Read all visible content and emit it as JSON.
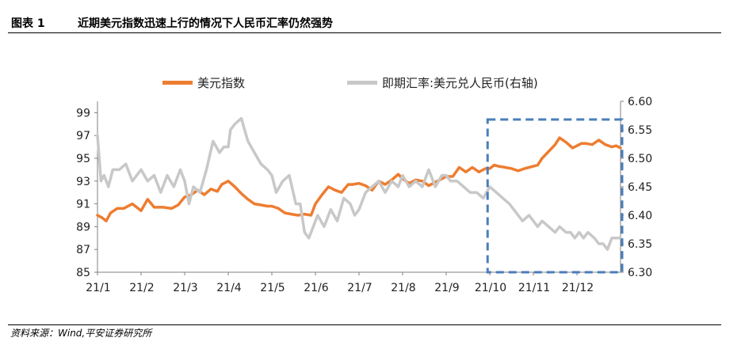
{
  "header": {
    "figure_label": "图表 1",
    "title": "近期美元指数迅速上行的情况下人民币汇率仍然强势"
  },
  "source": "资料来源：Wind,平安证券研究所",
  "colors": {
    "usd_index": "#ED7D31",
    "usdcny": "#C8C8C8",
    "highlight_box": "#4A7EBB",
    "axis": "#808080"
  },
  "chart_data": {
    "type": "line",
    "title": "近期美元指数迅速上行的情况下人民币汇率仍然强势",
    "xlabel": "",
    "ylabel_left": "",
    "ylabel_right": "",
    "x_ticks": [
      "21/1",
      "21/2",
      "21/3",
      "21/4",
      "21/5",
      "21/6",
      "21/7",
      "21/8",
      "21/9",
      "21/10",
      "21/11",
      "21/12"
    ],
    "x_range": [
      0,
      12
    ],
    "ylim_left": [
      85,
      100
    ],
    "yticks_left": [
      "85",
      "87",
      "89",
      "91",
      "93",
      "95",
      "97",
      "99"
    ],
    "ylim_right": [
      6.3,
      6.6
    ],
    "yticks_right": [
      "6.30",
      "6.35",
      "6.40",
      "6.45",
      "6.50",
      "6.55",
      "6.60"
    ],
    "legend": [
      "美元指数",
      "即期汇率:美元兑人民币(右轴)"
    ],
    "legend_position": "top-center",
    "highlight_region": {
      "x_start": 8.95,
      "x_end": 12.0,
      "style": "dashed-box",
      "label": ""
    },
    "series": [
      {
        "name": "美元指数",
        "axis": "left",
        "x": [
          0,
          0.1,
          0.2,
          0.3,
          0.45,
          0.6,
          0.8,
          1,
          1.15,
          1.3,
          1.5,
          1.7,
          1.85,
          2,
          2.15,
          2.3,
          2.45,
          2.6,
          2.75,
          2.85,
          3,
          3.15,
          3.3,
          3.45,
          3.6,
          3.75,
          3.9,
          4,
          4.15,
          4.3,
          4.45,
          4.6,
          4.75,
          4.9,
          5,
          5.15,
          5.3,
          5.45,
          5.6,
          5.75,
          5.85,
          6,
          6.15,
          6.3,
          6.45,
          6.6,
          6.75,
          6.9,
          7,
          7.15,
          7.3,
          7.45,
          7.6,
          7.75,
          7.9,
          8,
          8.15,
          8.3,
          8.45,
          8.6,
          8.75,
          8.9,
          9,
          9.1,
          9.2,
          9.35,
          9.5,
          9.65,
          9.8,
          10,
          10.1,
          10.2,
          10.35,
          10.5,
          10.6,
          10.75,
          10.9,
          11,
          11.1,
          11.2,
          11.35,
          11.5,
          11.65,
          11.8,
          11.9,
          12
        ],
        "values": [
          90.0,
          89.8,
          89.5,
          90.2,
          90.6,
          90.6,
          91.0,
          90.4,
          91.4,
          90.7,
          90.7,
          90.6,
          90.9,
          91.6,
          91.8,
          92.2,
          91.8,
          92.3,
          92.1,
          92.7,
          93.0,
          92.5,
          91.9,
          91.4,
          91.0,
          90.9,
          90.8,
          90.8,
          90.6,
          90.2,
          90.1,
          90.0,
          90.1,
          90.0,
          91.0,
          91.8,
          92.5,
          92.2,
          92.0,
          92.7,
          92.7,
          92.8,
          92.6,
          92.2,
          93.0,
          92.7,
          93.1,
          93.6,
          93.2,
          92.8,
          93.1,
          93.0,
          92.6,
          92.9,
          93.2,
          93.4,
          93.4,
          94.2,
          93.8,
          94.2,
          93.8,
          94.1,
          94.1,
          94.4,
          94.3,
          94.2,
          94.1,
          93.9,
          94.1,
          94.3,
          94.4,
          95.0,
          95.6,
          96.2,
          96.8,
          96.4,
          95.9,
          96.1,
          96.3,
          96.3,
          96.2,
          96.6,
          96.2,
          96.0,
          96.1,
          95.9
        ]
      },
      {
        "name": "即期汇率:美元兑人民币(右轴)",
        "axis": "right",
        "x": [
          0,
          0.08,
          0.15,
          0.25,
          0.35,
          0.5,
          0.65,
          0.8,
          1,
          1.15,
          1.3,
          1.45,
          1.6,
          1.75,
          1.9,
          2,
          2.1,
          2.2,
          2.35,
          2.5,
          2.65,
          2.8,
          2.9,
          3,
          3.05,
          3.15,
          3.3,
          3.45,
          3.6,
          3.75,
          3.9,
          4,
          4.1,
          4.25,
          4.4,
          4.55,
          4.65,
          4.75,
          4.85,
          4.95,
          5.05,
          5.2,
          5.35,
          5.5,
          5.65,
          5.8,
          5.9,
          6,
          6.15,
          6.3,
          6.45,
          6.6,
          6.75,
          6.9,
          7,
          7.15,
          7.3,
          7.45,
          7.6,
          7.75,
          7.9,
          8,
          8.1,
          8.25,
          8.4,
          8.55,
          8.7,
          8.85,
          9,
          9.15,
          9.3,
          9.45,
          9.55,
          9.65,
          9.75,
          9.9,
          10,
          10.1,
          10.2,
          10.35,
          10.5,
          10.6,
          10.75,
          10.85,
          10.95,
          11.05,
          11.15,
          11.25,
          11.4,
          11.5,
          11.6,
          11.7,
          11.8,
          11.9,
          12
        ],
        "values": [
          6.54,
          6.46,
          6.47,
          6.45,
          6.48,
          6.48,
          6.49,
          6.46,
          6.48,
          6.46,
          6.47,
          6.44,
          6.47,
          6.45,
          6.48,
          6.46,
          6.42,
          6.45,
          6.44,
          6.48,
          6.53,
          6.51,
          6.52,
          6.52,
          6.55,
          6.56,
          6.57,
          6.53,
          6.51,
          6.49,
          6.48,
          6.47,
          6.44,
          6.46,
          6.47,
          6.42,
          6.42,
          6.37,
          6.36,
          6.38,
          6.4,
          6.38,
          6.41,
          6.39,
          6.43,
          6.42,
          6.4,
          6.41,
          6.44,
          6.45,
          6.46,
          6.44,
          6.46,
          6.45,
          6.47,
          6.45,
          6.46,
          6.45,
          6.48,
          6.45,
          6.47,
          6.47,
          6.46,
          6.46,
          6.45,
          6.44,
          6.44,
          6.43,
          6.45,
          6.44,
          6.43,
          6.42,
          6.41,
          6.4,
          6.39,
          6.4,
          6.39,
          6.38,
          6.39,
          6.38,
          6.37,
          6.38,
          6.37,
          6.37,
          6.36,
          6.37,
          6.36,
          6.37,
          6.36,
          6.35,
          6.35,
          6.34,
          6.36,
          6.36,
          6.36
        ]
      }
    ]
  }
}
